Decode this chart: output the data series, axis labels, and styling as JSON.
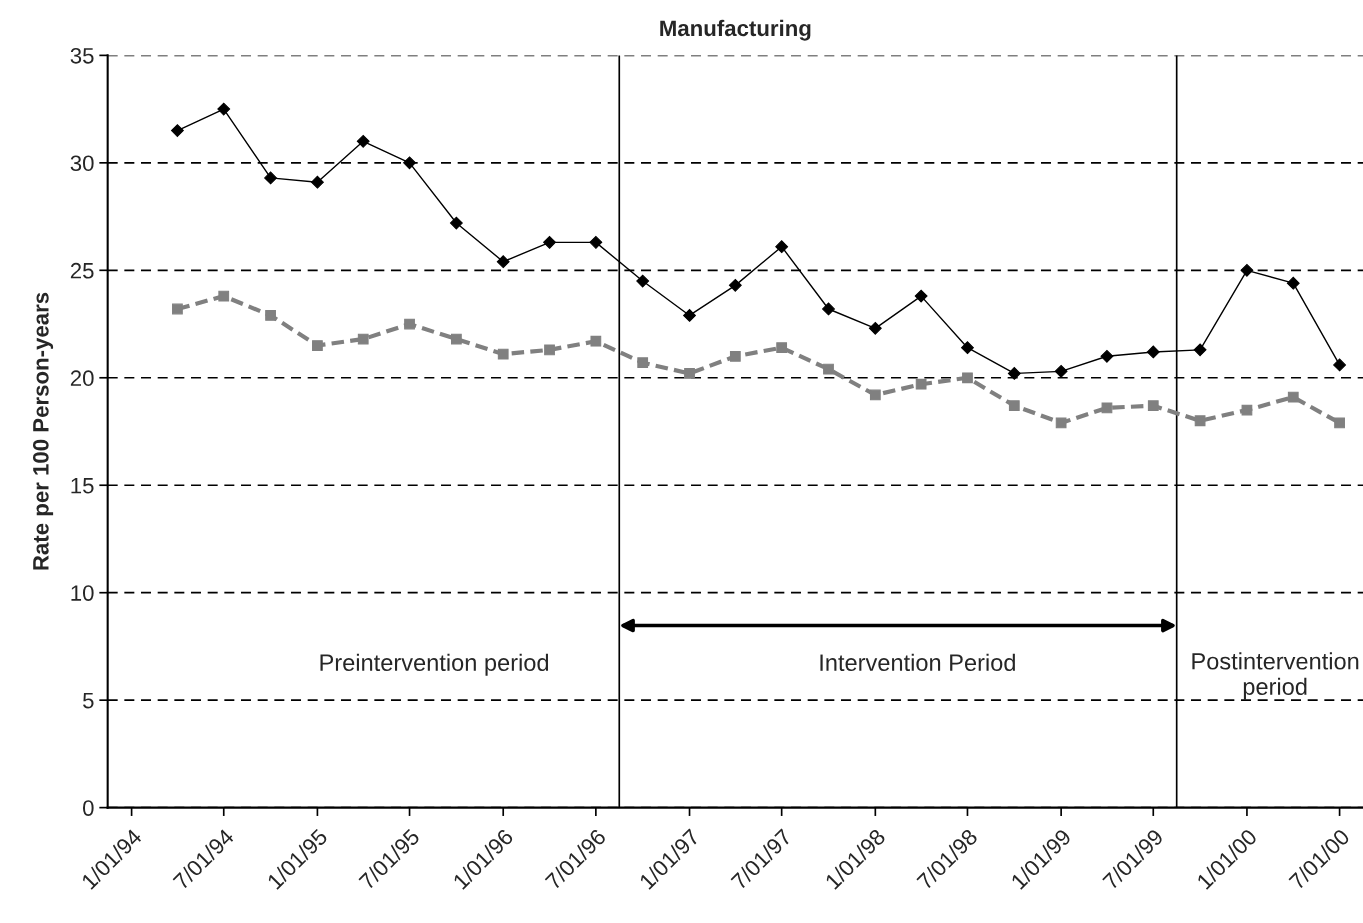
{
  "chart_data": {
    "type": "line",
    "title": "Manufacturing",
    "ylabel": "Rate per 100 Person-years",
    "x": [
      "1994-04-01",
      "1994-07-01",
      "1994-10-01",
      "1995-01-01",
      "1995-04-01",
      "1995-07-01",
      "1995-10-01",
      "1996-01-01",
      "1996-04-01",
      "1996-07-01",
      "1996-10-01",
      "1997-01-01",
      "1997-04-01",
      "1997-07-01",
      "1997-10-01",
      "1998-01-01",
      "1998-04-01",
      "1998-07-01",
      "1998-10-01",
      "1999-01-01",
      "1999-04-01",
      "1999-07-01",
      "1999-10-01",
      "2000-01-01",
      "2000-04-01",
      "2000-07-01"
    ],
    "series": [
      {
        "color": "#000000",
        "marker": "diamond",
        "line_style": "solid",
        "values": [
          31.5,
          32.5,
          29.3,
          29.1,
          31.0,
          30.0,
          27.2,
          25.4,
          26.3,
          26.3,
          24.5,
          22.9,
          24.3,
          26.1,
          23.2,
          22.3,
          23.8,
          21.4,
          20.2,
          20.3,
          21.0,
          21.2,
          21.3,
          25.0,
          24.4,
          20.6
        ]
      },
      {
        "color": "#808080",
        "marker": "square",
        "line_style": "dashed",
        "values": [
          23.2,
          23.8,
          22.9,
          21.5,
          21.8,
          22.5,
          21.8,
          21.1,
          21.3,
          21.7,
          20.7,
          20.2,
          21.0,
          21.4,
          20.4,
          19.2,
          19.7,
          20.0,
          18.7,
          17.9,
          18.6,
          18.7,
          18.0,
          18.5,
          19.1,
          17.9
        ]
      }
    ],
    "xlim": [
      "1993-11-15",
      "2000-08-16"
    ],
    "xticks": [
      {
        "value": "1994-01-01",
        "label": "1/01/94"
      },
      {
        "value": "1994-07-01",
        "label": "7/01/94"
      },
      {
        "value": "1995-01-01",
        "label": "1/01/95"
      },
      {
        "value": "1995-07-01",
        "label": "7/01/95"
      },
      {
        "value": "1996-01-01",
        "label": "1/01/96"
      },
      {
        "value": "1996-07-01",
        "label": "7/01/96"
      },
      {
        "value": "1997-01-01",
        "label": "1/01/97"
      },
      {
        "value": "1997-07-01",
        "label": "7/01/97"
      },
      {
        "value": "1998-01-01",
        "label": "1/01/98"
      },
      {
        "value": "1998-07-01",
        "label": "7/01/98"
      },
      {
        "value": "1999-01-01",
        "label": "1/01/99"
      },
      {
        "value": "1999-07-01",
        "label": "7/01/99"
      },
      {
        "value": "2000-01-01",
        "label": "1/01/00"
      },
      {
        "value": "2000-07-01",
        "label": "7/01/00"
      }
    ],
    "ylim": [
      0,
      35
    ],
    "yticks": [
      0,
      5,
      10,
      15,
      20,
      25,
      30,
      35
    ],
    "grid": "y",
    "legend": false,
    "ref_lines": [
      {
        "axis": "x",
        "value": "1996-08-16",
        "color": "#000000"
      },
      {
        "axis": "x",
        "value": "1999-08-16",
        "color": "#000000"
      }
    ],
    "annotations": [
      "Preintervention period",
      "Intervention Period",
      "Postintervention\nperiod"
    ]
  }
}
